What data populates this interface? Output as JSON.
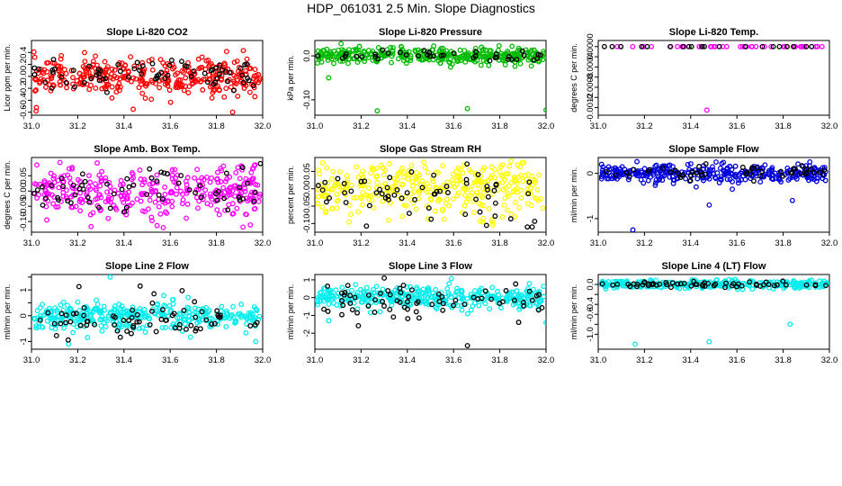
{
  "title": "HDP_061031  2.5 Min. Slope Diagnostics",
  "chart_data": [
    {
      "type": "scatter",
      "title": "Slope Li-820 CO2",
      "xlabel": "",
      "ylabel": "Licor ppm per min.",
      "xlim": [
        31.0,
        32.0
      ],
      "ylim": [
        -0.65,
        0.6
      ],
      "xticks": [
        "31.0",
        "31.2",
        "31.4",
        "31.6",
        "31.8",
        "32.0"
      ],
      "yticks": [
        -0.6,
        -0.4,
        -0.2,
        0.0,
        0.2,
        0.4
      ],
      "ytick_labels": [
        "-0.6",
        "-0.4",
        "-0.2",
        "0.0",
        "0.2",
        "0.4"
      ],
      "series": [
        {
          "color": "#ff0000",
          "mean": 0.0,
          "sd": 0.15,
          "n": 340,
          "outliers": [
            [
              31.44,
              -0.55
            ],
            [
              31.87,
              -0.6
            ],
            [
              31.02,
              -0.58
            ]
          ]
        },
        {
          "color": "#000000",
          "mean": 0.02,
          "sd": 0.12,
          "n": 70,
          "outliers": []
        }
      ]
    },
    {
      "type": "scatter",
      "title": "Slope Li-820 Pressure",
      "xlabel": "",
      "ylabel": "kPa per min.",
      "xlim": [
        31.0,
        32.0
      ],
      "ylim": [
        -0.135,
        0.035
      ],
      "xticks": [
        "31.0",
        "31.2",
        "31.4",
        "31.6",
        "31.8",
        "32.0"
      ],
      "yticks": [
        -0.1,
        0.0
      ],
      "ytick_labels": [
        "-0.10",
        "0.0"
      ],
      "series": [
        {
          "color": "#00bb00",
          "mean": 0.0,
          "sd": 0.009,
          "n": 380,
          "outliers": [
            [
              31.27,
              -0.125
            ],
            [
              31.66,
              -0.12
            ],
            [
              32.0,
              -0.123
            ],
            [
              31.06,
              -0.05
            ]
          ]
        },
        {
          "color": "#000000",
          "mean": 0.0,
          "sd": 0.007,
          "n": 40,
          "outliers": []
        }
      ]
    },
    {
      "type": "scatter",
      "title": "Slope Li-820 Temp.",
      "xlabel": "",
      "ylabel": "degrees C per min.",
      "xlim": [
        31.0,
        32.0
      ],
      "ylim": [
        -0.00135,
        0.00012
      ],
      "xticks": [
        "31.0",
        "31.2",
        "31.4",
        "31.6",
        "31.8",
        "32.0"
      ],
      "yticks": [
        -0.0012,
        -0.001,
        -0.0008,
        -0.0006,
        -0.0004,
        -0.0002,
        0.0
      ],
      "ytick_labels": [
        "-0.0012",
        "",
        "-0.0008",
        "",
        "-0.0004",
        "",
        "0.0000"
      ],
      "series": [
        {
          "color": "#ff00ff",
          "mean": 0.0,
          "sd": 0.0,
          "n": 40,
          "outliers": [
            [
              31.47,
              -0.00125
            ]
          ]
        },
        {
          "color": "#000000",
          "mean": 0.0,
          "sd": 0.0,
          "n": 20,
          "outliers": []
        }
      ]
    },
    {
      "type": "scatter",
      "title": "Slope Amb. Box Temp.",
      "xlabel": "",
      "ylabel": "degrees C per min.",
      "xlim": [
        31.0,
        32.0
      ],
      "ylim": [
        -0.135,
        0.11
      ],
      "xticks": [
        "31.0",
        "31.2",
        "31.4",
        "31.6",
        "31.8",
        "32.0"
      ],
      "yticks": [
        -0.1,
        -0.05,
        0.0,
        0.05
      ],
      "ytick_labels": [
        "-0.10",
        "-0.05",
        "0.00",
        "0.05"
      ],
      "series": [
        {
          "color": "#ff00ff",
          "mean": 0.0,
          "sd": 0.04,
          "n": 340,
          "outliers": [
            [
              31.57,
              -0.12
            ],
            [
              31.62,
              0.07
            ]
          ]
        },
        {
          "color": "#000000",
          "mean": 0.0,
          "sd": 0.035,
          "n": 60,
          "outliers": [
            [
              31.99,
              0.09
            ]
          ]
        }
      ]
    },
    {
      "type": "scatter",
      "title": "Slope Gas Stream RH",
      "xlabel": "",
      "ylabel": "percent per min.",
      "xlim": [
        31.0,
        32.0
      ],
      "ylim": [
        -0.125,
        0.09
      ],
      "xticks": [
        "31.0",
        "31.2",
        "31.4",
        "31.6",
        "31.8",
        "32.0"
      ],
      "yticks": [
        -0.1,
        -0.05,
        0.0,
        0.05
      ],
      "ytick_labels": [
        "-0.10",
        "-0.05",
        "0.00",
        "0.05"
      ],
      "series": [
        {
          "color": "#ffff00",
          "mean": 0.0,
          "sd": 0.04,
          "n": 340,
          "outliers": []
        },
        {
          "color": "#000000",
          "mean": -0.01,
          "sd": 0.04,
          "n": 60,
          "outliers": [
            [
              31.94,
              -0.11
            ]
          ]
        }
      ]
    },
    {
      "type": "scatter",
      "title": "Slope Sample Flow",
      "xlabel": "",
      "ylabel": "ml/min per min.",
      "xlim": [
        31.0,
        32.0
      ],
      "ylim": [
        -1.3,
        0.35
      ],
      "xticks": [
        "31.0",
        "31.2",
        "31.4",
        "31.6",
        "31.8",
        "32.0"
      ],
      "yticks": [
        -1.0,
        0.0
      ],
      "ytick_labels": [
        "-1",
        "0"
      ],
      "series": [
        {
          "color": "#0000dd",
          "mean": 0.0,
          "sd": 0.1,
          "n": 340,
          "outliers": [
            [
              31.15,
              -1.25
            ],
            [
              31.48,
              -0.7
            ],
            [
              31.84,
              -0.6
            ],
            [
              31.58,
              -0.35
            ]
          ]
        },
        {
          "color": "#000000",
          "mean": 0.0,
          "sd": 0.08,
          "n": 50,
          "outliers": []
        }
      ]
    },
    {
      "type": "scatter",
      "title": "Slope Line 2 Flow",
      "xlabel": "",
      "ylabel": "ml/min per min.",
      "xlim": [
        31.0,
        32.0
      ],
      "ylim": [
        -1.3,
        1.6
      ],
      "xticks": [
        "31.0",
        "31.2",
        "31.4",
        "31.6",
        "31.8",
        "32.0"
      ],
      "yticks": [
        -1.0,
        -0.5,
        0.0,
        0.5,
        1.0,
        1.5
      ],
      "ytick_labels": [
        "-1",
        "",
        "0",
        "",
        "1",
        ""
      ],
      "series": [
        {
          "color": "#00eeee",
          "mean": 0.0,
          "sd": 0.25,
          "n": 340,
          "outliers": [
            [
              31.16,
              -1.1
            ],
            [
              31.34,
              1.5
            ],
            [
              31.97,
              -1.0
            ]
          ]
        },
        {
          "color": "#000000",
          "mean": -0.1,
          "sd": 0.45,
          "n": 70,
          "outliers": [
            [
              31.47,
              1.15
            ],
            [
              31.53,
              0.85
            ]
          ]
        }
      ]
    },
    {
      "type": "scatter",
      "title": "Slope Line 3 Flow",
      "xlabel": "",
      "ylabel": "ml/min per min.",
      "xlim": [
        31.0,
        32.0
      ],
      "ylim": [
        -2.9,
        1.3
      ],
      "xticks": [
        "31.0",
        "31.2",
        "31.4",
        "31.6",
        "31.8",
        "32.0"
      ],
      "yticks": [
        -2.0,
        -1.0,
        0.0,
        1.0
      ],
      "ytick_labels": [
        "-2",
        "-1",
        "0",
        "1"
      ],
      "series": [
        {
          "color": "#00eeee",
          "mean": 0.0,
          "sd": 0.3,
          "n": 340,
          "outliers": [
            [
              31.06,
              -1.3
            ],
            [
              32.0,
              -1.4
            ]
          ]
        },
        {
          "color": "#000000",
          "mean": -0.2,
          "sd": 0.55,
          "n": 70,
          "outliers": [
            [
              31.66,
              -2.7
            ],
            [
              31.3,
              1.1
            ]
          ]
        }
      ]
    },
    {
      "type": "scatter",
      "title": "Slope Line 4 (LT) Flow",
      "xlabel": "",
      "ylabel": "ml/min per min.",
      "xlim": [
        31.0,
        32.0
      ],
      "ylim": [
        -1.3,
        0.2
      ],
      "xticks": [
        "31.0",
        "31.2",
        "31.4",
        "31.6",
        "31.8",
        "32.0"
      ],
      "yticks": [
        -1.0,
        -0.8,
        -0.6,
        -0.4,
        -0.2,
        0.0
      ],
      "ytick_labels": [
        "-1.0",
        "",
        "-0.6",
        "-0.4",
        "",
        "0.0"
      ],
      "series": [
        {
          "color": "#00eeee",
          "mean": 0.0,
          "sd": 0.04,
          "n": 320,
          "outliers": [
            [
              31.16,
              -1.2
            ],
            [
              31.48,
              -1.15
            ],
            [
              31.83,
              -0.8
            ]
          ]
        },
        {
          "color": "#000000",
          "mean": 0.0,
          "sd": 0.03,
          "n": 60,
          "outliers": []
        }
      ]
    }
  ]
}
